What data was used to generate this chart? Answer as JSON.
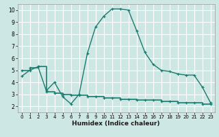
{
  "xlabel": "Humidex (Indice chaleur)",
  "xlim": [
    -0.5,
    23.5
  ],
  "ylim": [
    1.5,
    10.5
  ],
  "yticks": [
    2,
    3,
    4,
    5,
    6,
    7,
    8,
    9,
    10
  ],
  "xticks": [
    0,
    1,
    2,
    3,
    4,
    5,
    6,
    7,
    8,
    9,
    10,
    11,
    12,
    13,
    14,
    15,
    16,
    17,
    18,
    19,
    20,
    21,
    22,
    23
  ],
  "background_color": "#cde8e4",
  "grid_color": "#b0d8d2",
  "line_color": "#1a7a6e",
  "line1_x": [
    0,
    1,
    2,
    3,
    4,
    5,
    6,
    7,
    8,
    9,
    10,
    11,
    12,
    13,
    14,
    15,
    16,
    17,
    18,
    19,
    20,
    21,
    22,
    23
  ],
  "line1_y": [
    4.5,
    5.0,
    5.3,
    3.3,
    4.0,
    2.8,
    2.2,
    3.0,
    6.4,
    8.6,
    9.5,
    10.1,
    10.1,
    10.0,
    8.3,
    6.5,
    5.5,
    5.0,
    4.9,
    4.7,
    4.6,
    4.6,
    3.6,
    2.3
  ],
  "line2_x": [
    0,
    1,
    2,
    3,
    4,
    5,
    6,
    7,
    8,
    9,
    10,
    11,
    12,
    13,
    14,
    15,
    16,
    17,
    18,
    19,
    20,
    21,
    22,
    23
  ],
  "line2_y": [
    5.0,
    5.2,
    5.3,
    3.2,
    3.1,
    3.0,
    2.9,
    2.9,
    2.8,
    2.8,
    2.7,
    2.7,
    2.6,
    2.6,
    2.5,
    2.5,
    2.5,
    2.4,
    2.4,
    2.3,
    2.3,
    2.3,
    2.2,
    2.2
  ]
}
